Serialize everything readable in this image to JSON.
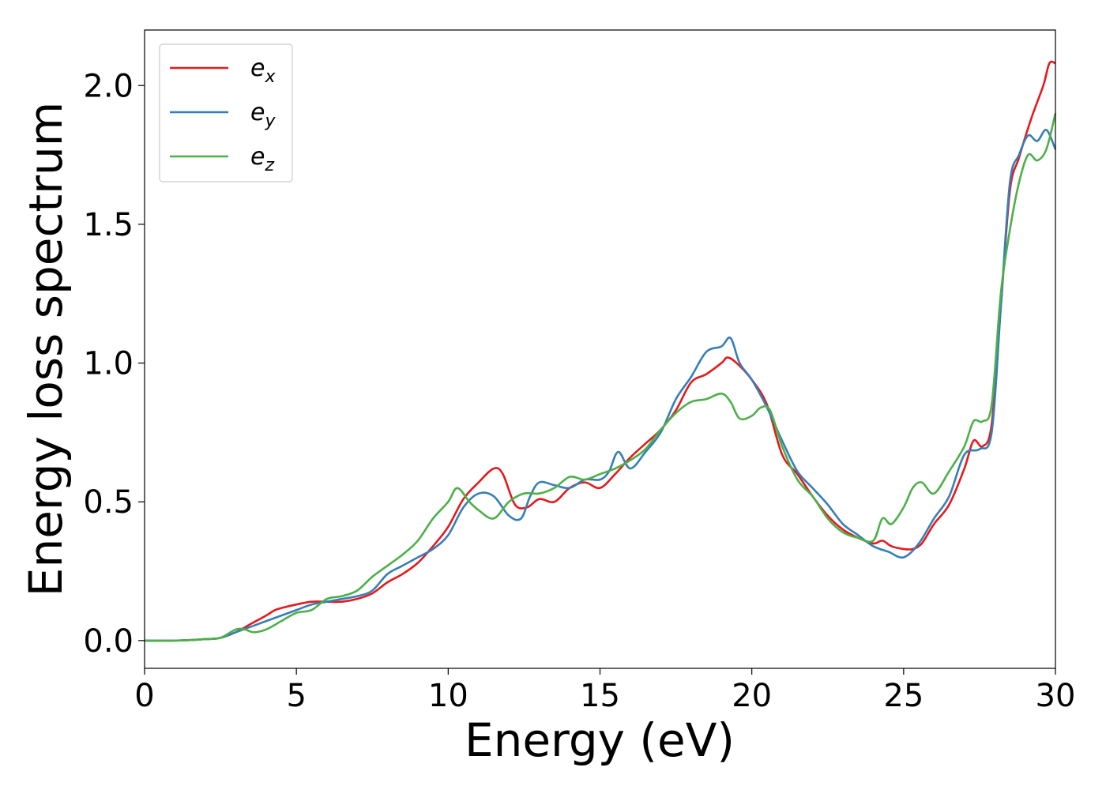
{
  "chart_data": {
    "type": "line",
    "title": "",
    "xlabel": "Energy (eV)",
    "ylabel": "Energy loss spectrum",
    "xlim": [
      0,
      30
    ],
    "ylim": [
      -0.1,
      2.2
    ],
    "xticks": [
      0,
      5,
      10,
      15,
      20,
      25,
      30
    ],
    "xtick_labels": [
      "0",
      "5",
      "10",
      "15",
      "20",
      "25",
      "30"
    ],
    "yticks": [
      0.0,
      0.5,
      1.0,
      1.5,
      2.0
    ],
    "ytick_labels": [
      "0.0",
      "0.5",
      "1.0",
      "1.5",
      "2.0"
    ],
    "grid": false,
    "legend_position": "top-left",
    "colors": {
      "ex": "#e41a1c",
      "ey": "#377eb8",
      "ez": "#4daf4a"
    },
    "series": [
      {
        "id": "ex",
        "name": "e_x",
        "label_base": "e",
        "label_sub": "x",
        "color": "#e41a1c",
        "x": [
          0,
          1,
          2,
          2.5,
          3,
          3.5,
          4,
          4.3,
          4.6,
          5,
          5.5,
          6,
          6.5,
          7,
          7.5,
          8,
          8.5,
          9,
          9.5,
          10,
          10.5,
          11,
          11.5,
          11.8,
          12.2,
          12.6,
          13,
          13.5,
          14,
          14.5,
          15,
          15.5,
          16,
          16.5,
          17,
          17.5,
          18,
          18.5,
          19,
          19.2,
          19.5,
          20,
          20.5,
          21,
          21.5,
          22,
          22.5,
          23,
          23.5,
          24,
          24.3,
          24.6,
          25,
          25.3,
          25.6,
          26,
          26.5,
          27,
          27.3,
          27.6,
          27.9,
          28.2,
          28.5,
          28.8,
          29.2,
          29.6,
          29.8,
          30
        ],
        "y": [
          0.0,
          0.0,
          0.005,
          0.01,
          0.03,
          0.06,
          0.09,
          0.11,
          0.12,
          0.13,
          0.14,
          0.14,
          0.14,
          0.15,
          0.17,
          0.21,
          0.24,
          0.28,
          0.34,
          0.41,
          0.51,
          0.57,
          0.62,
          0.6,
          0.49,
          0.48,
          0.51,
          0.5,
          0.55,
          0.57,
          0.55,
          0.6,
          0.66,
          0.71,
          0.76,
          0.83,
          0.93,
          0.96,
          1.0,
          1.02,
          1.0,
          0.94,
          0.85,
          0.67,
          0.6,
          0.52,
          0.45,
          0.4,
          0.37,
          0.35,
          0.36,
          0.34,
          0.33,
          0.33,
          0.35,
          0.42,
          0.49,
          0.62,
          0.72,
          0.7,
          0.78,
          1.2,
          1.62,
          1.74,
          1.88,
          2.0,
          2.08,
          2.08
        ]
      },
      {
        "id": "ey",
        "name": "e_y",
        "label_base": "e",
        "label_sub": "y",
        "color": "#377eb8",
        "x": [
          0,
          1,
          2,
          2.5,
          3,
          3.5,
          4,
          4.5,
          5,
          5.5,
          6,
          6.5,
          7,
          7.5,
          8,
          8.5,
          9,
          9.5,
          10,
          10.5,
          11,
          11.5,
          12,
          12.4,
          12.7,
          13,
          13.5,
          14,
          14.5,
          15,
          15.3,
          15.6,
          16,
          16.5,
          17,
          17.5,
          18,
          18.5,
          19,
          19.3,
          19.6,
          20,
          20.5,
          21,
          21.5,
          22,
          22.5,
          23,
          23.5,
          24,
          24.5,
          25,
          25.5,
          26,
          26.5,
          27,
          27.5,
          27.9,
          28.2,
          28.5,
          28.8,
          29.1,
          29.4,
          29.7,
          30
        ],
        "y": [
          0.0,
          0.0,
          0.005,
          0.01,
          0.03,
          0.05,
          0.07,
          0.09,
          0.11,
          0.13,
          0.14,
          0.15,
          0.16,
          0.18,
          0.24,
          0.27,
          0.3,
          0.33,
          0.38,
          0.48,
          0.53,
          0.52,
          0.45,
          0.44,
          0.52,
          0.57,
          0.56,
          0.55,
          0.58,
          0.58,
          0.61,
          0.68,
          0.62,
          0.68,
          0.75,
          0.87,
          0.95,
          1.04,
          1.06,
          1.09,
          1.0,
          0.94,
          0.84,
          0.72,
          0.61,
          0.55,
          0.49,
          0.42,
          0.38,
          0.34,
          0.32,
          0.3,
          0.35,
          0.44,
          0.52,
          0.67,
          0.69,
          0.75,
          1.2,
          1.65,
          1.75,
          1.82,
          1.8,
          1.84,
          1.77
        ]
      },
      {
        "id": "ez",
        "name": "e_z",
        "label_base": "e",
        "label_sub": "z",
        "color": "#4daf4a",
        "x": [
          0,
          1,
          2,
          2.5,
          3,
          3.3,
          3.6,
          4,
          4.5,
          5,
          5.5,
          6,
          6.5,
          7,
          7.5,
          8,
          8.5,
          9,
          9.5,
          10,
          10.3,
          10.7,
          11,
          11.5,
          12,
          12.5,
          13,
          13.5,
          14,
          14.5,
          15,
          15.5,
          16,
          16.5,
          17,
          17.5,
          18,
          18.5,
          19,
          19.3,
          19.6,
          20,
          20.3,
          20.6,
          21,
          21.5,
          22,
          22.5,
          23,
          23.5,
          24,
          24.3,
          24.6,
          25,
          25.3,
          25.6,
          26,
          26.5,
          27,
          27.3,
          27.6,
          27.9,
          28.2,
          28.5,
          28.8,
          29.1,
          29.4,
          29.7,
          30
        ],
        "y": [
          0.0,
          0.0,
          0.005,
          0.01,
          0.04,
          0.04,
          0.03,
          0.04,
          0.07,
          0.1,
          0.11,
          0.15,
          0.16,
          0.18,
          0.23,
          0.27,
          0.31,
          0.36,
          0.44,
          0.5,
          0.55,
          0.5,
          0.47,
          0.44,
          0.5,
          0.53,
          0.53,
          0.55,
          0.59,
          0.58,
          0.6,
          0.62,
          0.65,
          0.69,
          0.76,
          0.82,
          0.86,
          0.87,
          0.89,
          0.86,
          0.8,
          0.81,
          0.84,
          0.83,
          0.7,
          0.58,
          0.52,
          0.44,
          0.39,
          0.37,
          0.36,
          0.44,
          0.42,
          0.48,
          0.55,
          0.57,
          0.53,
          0.61,
          0.7,
          0.79,
          0.79,
          0.85,
          1.25,
          1.48,
          1.65,
          1.75,
          1.73,
          1.77,
          1.9
        ]
      }
    ]
  }
}
